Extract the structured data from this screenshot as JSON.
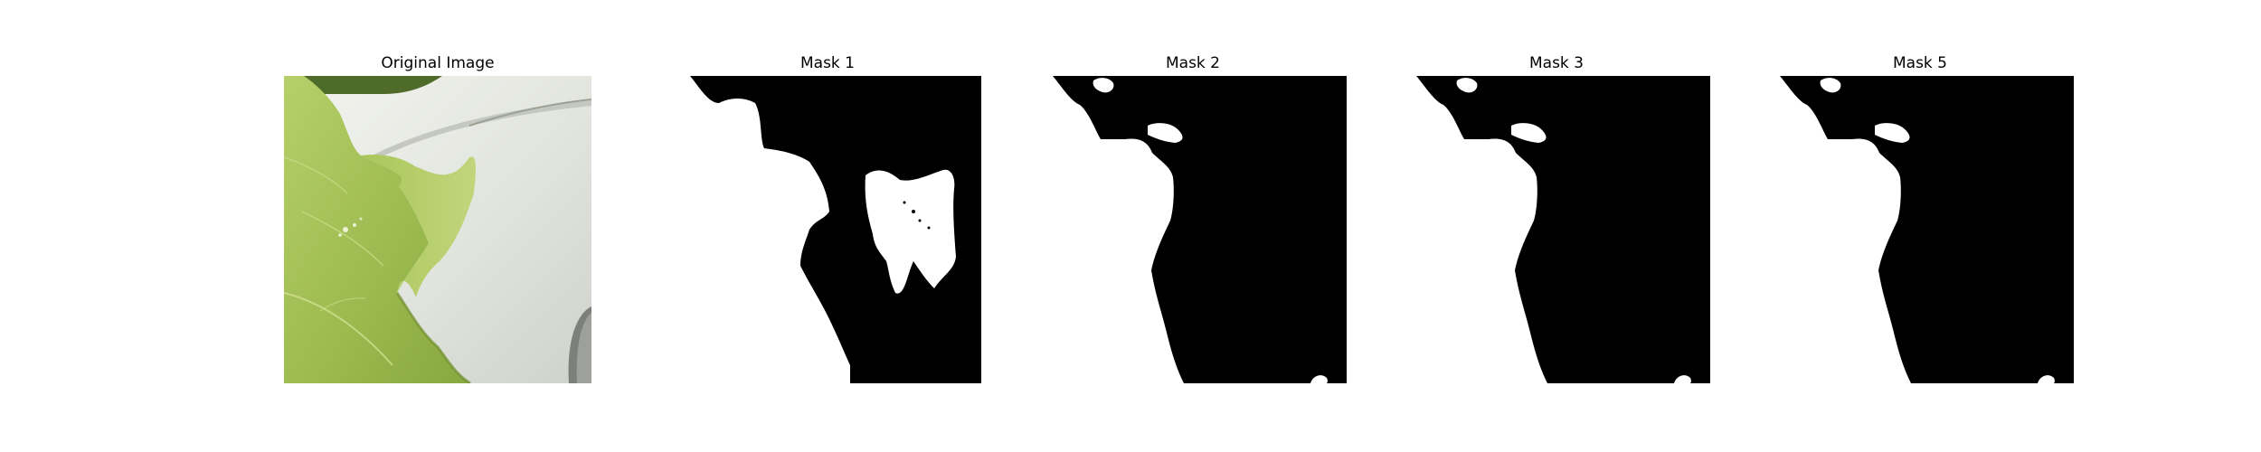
{
  "panels": [
    {
      "title": "Original Image",
      "kind": "photo"
    },
    {
      "title": "Mask 1",
      "kind": "mask"
    },
    {
      "title": "Mask 2",
      "kind": "mask"
    },
    {
      "title": "Mask 3",
      "kind": "mask"
    },
    {
      "title": "Mask 5",
      "kind": "mask"
    }
  ],
  "colors": {
    "mask_foreground": "#ffffff",
    "mask_background": "#000000",
    "leaf_green": "#a6c25a",
    "leaf_dark": "#6f8f2c",
    "plate_white": "#e6e8e2",
    "plate_shadow": "#b9bdb5"
  }
}
